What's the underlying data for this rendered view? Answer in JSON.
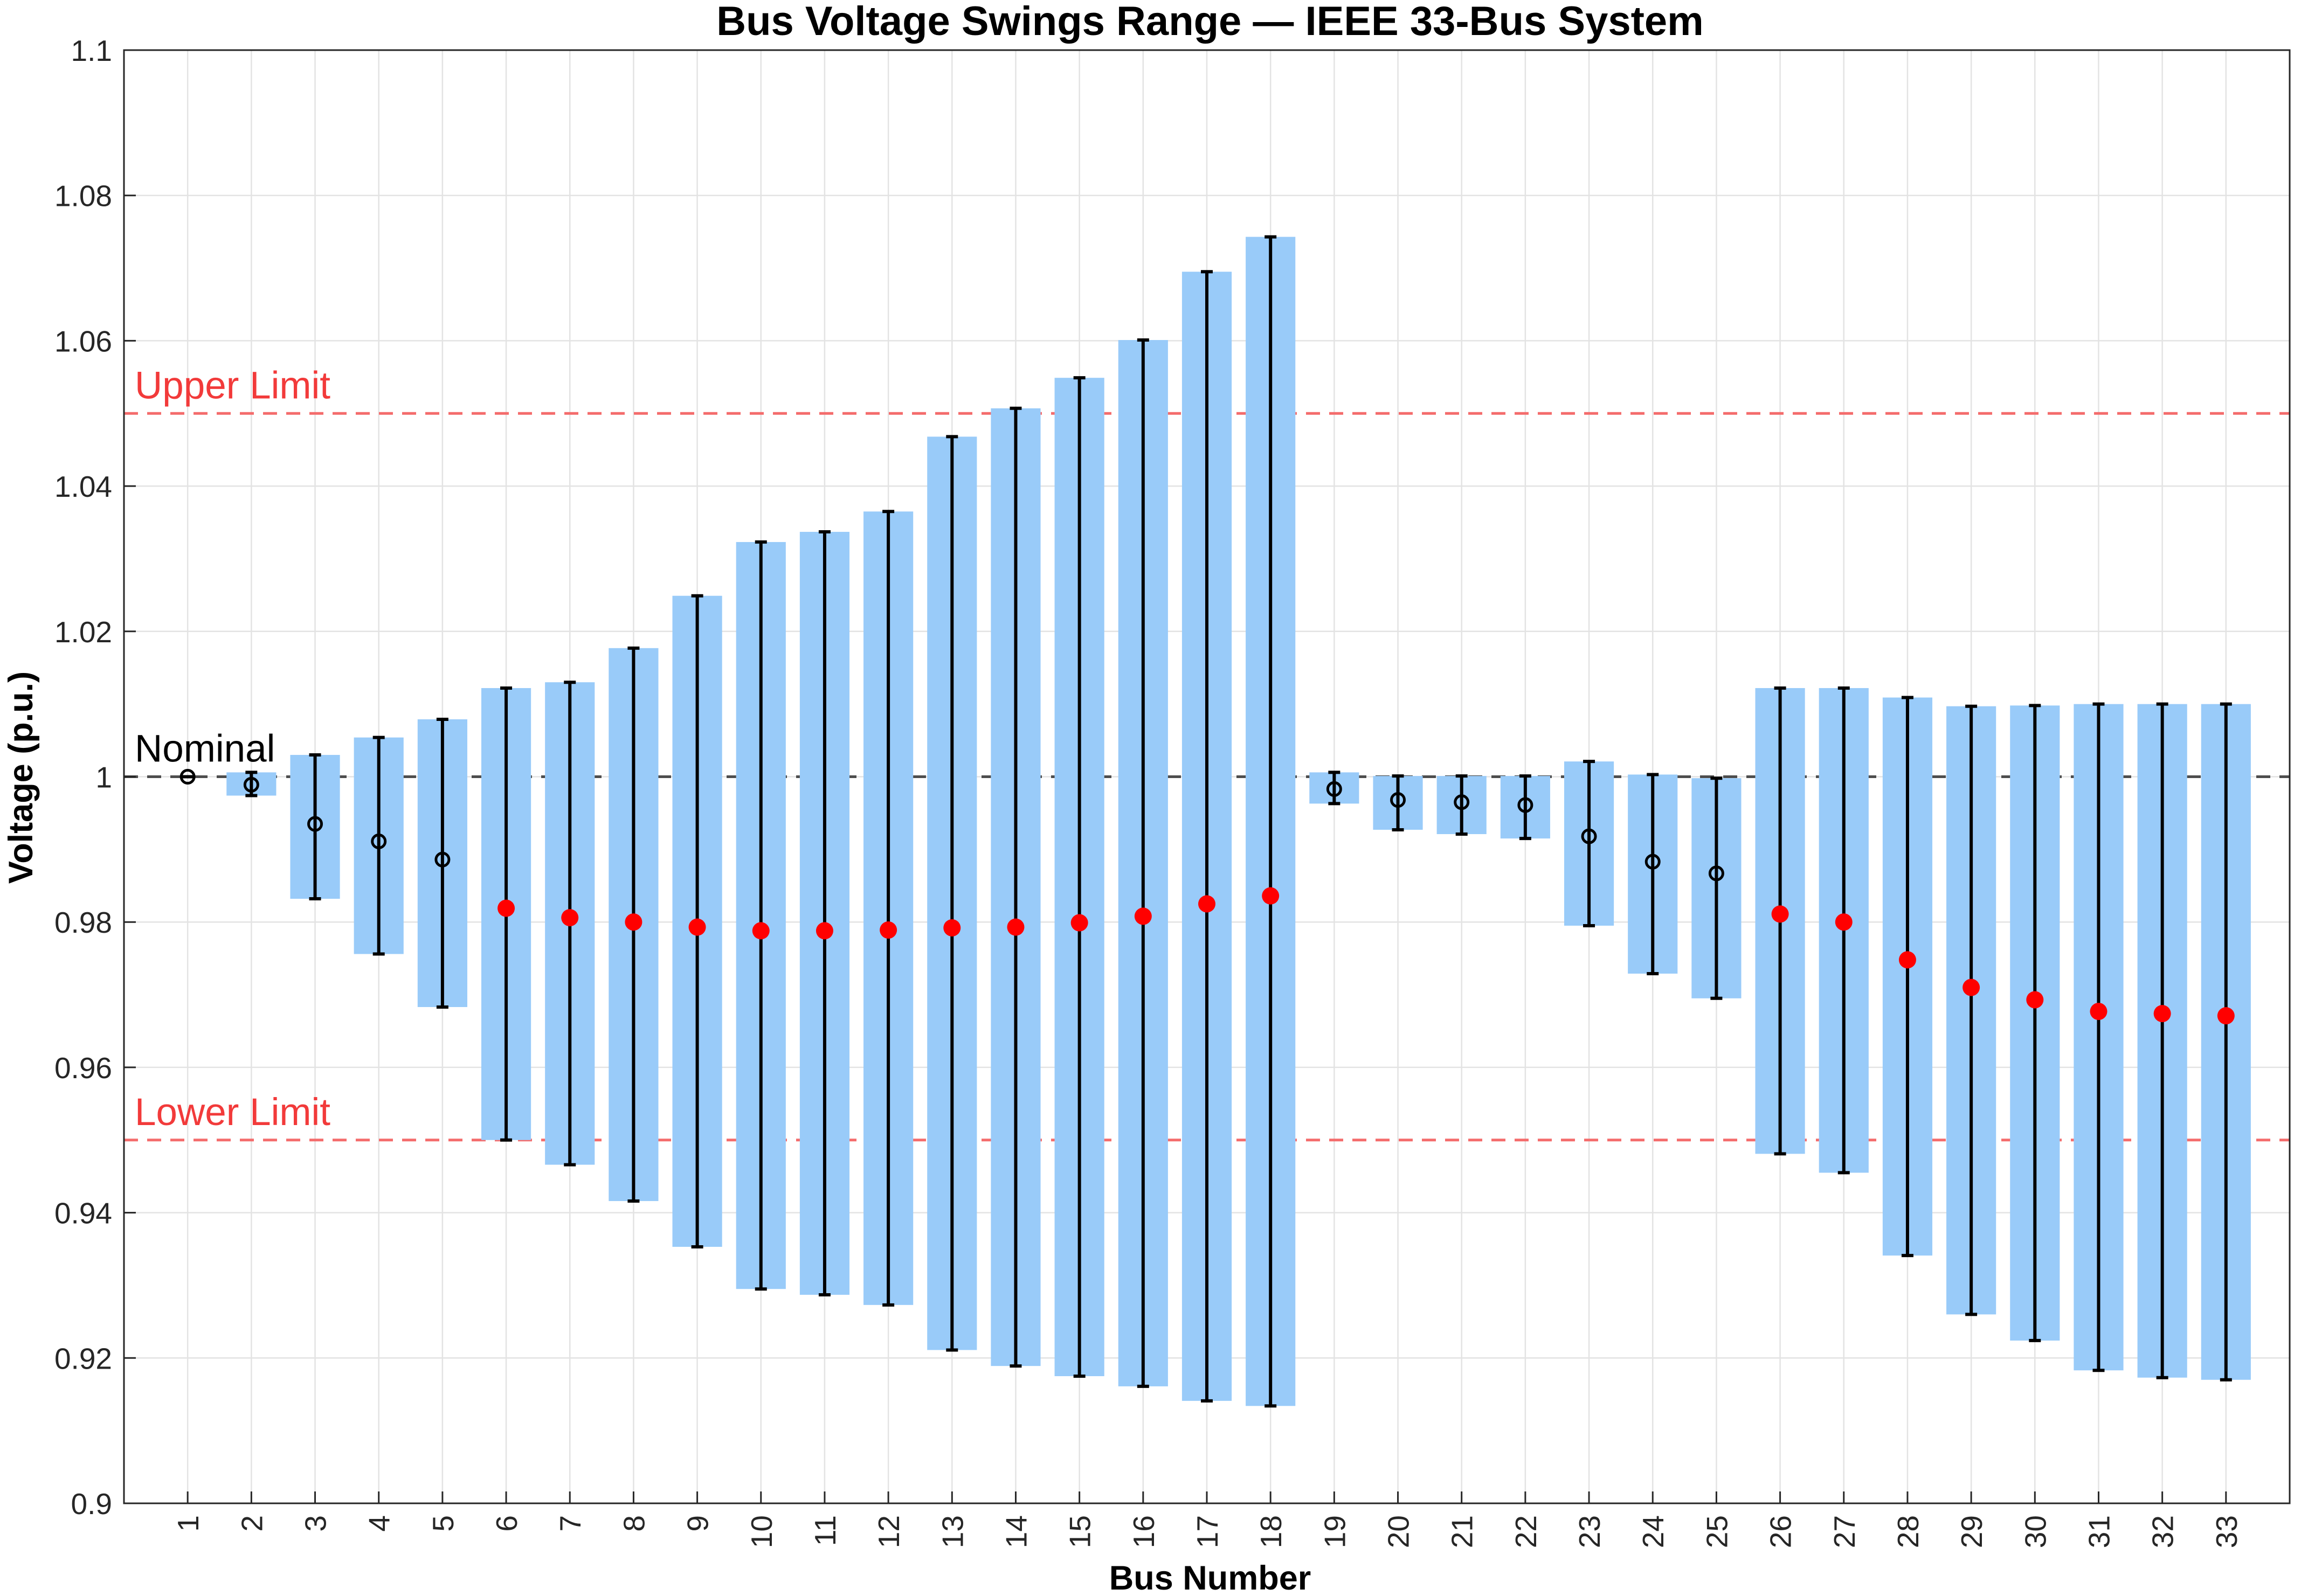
{
  "chart_data": {
    "type": "bar",
    "title": "Bus Voltage Swings Range — IEEE 33-Bus System",
    "xlabel": "Bus Number",
    "ylabel": "Voltage (p.u.)",
    "ylim": [
      0.9,
      1.1
    ],
    "xlim": [
      0,
      34
    ],
    "y_ticks": [
      "0.9",
      "0.92",
      "0.94",
      "0.96",
      "0.98",
      "1",
      "1.02",
      "1.04",
      "1.06",
      "1.08",
      "1.1"
    ],
    "grid": true,
    "categories": [
      "1",
      "2",
      "3",
      "4",
      "5",
      "6",
      "7",
      "8",
      "9",
      "10",
      "11",
      "12",
      "13",
      "14",
      "15",
      "16",
      "17",
      "18",
      "19",
      "20",
      "21",
      "22",
      "23",
      "24",
      "25",
      "26",
      "27",
      "28",
      "29",
      "30",
      "31",
      "32",
      "33"
    ],
    "bus": [
      1,
      2,
      3,
      4,
      5,
      6,
      7,
      8,
      9,
      10,
      11,
      12,
      13,
      14,
      15,
      16,
      17,
      18,
      19,
      20,
      21,
      22,
      23,
      24,
      25,
      26,
      27,
      28,
      29,
      30,
      31,
      32,
      33
    ],
    "vmin": [
      1.0,
      0.9974,
      0.9832,
      0.9756,
      0.9683,
      0.95,
      0.9466,
      0.9416,
      0.9353,
      0.9295,
      0.9287,
      0.9273,
      0.9211,
      0.9189,
      0.9175,
      0.9161,
      0.9141,
      0.9134,
      0.9963,
      0.9927,
      0.9921,
      0.9915,
      0.9795,
      0.9729,
      0.9695,
      0.9481,
      0.9455,
      0.9341,
      0.926,
      0.9224,
      0.9183,
      0.9173,
      0.917
    ],
    "vmax": [
      1.0,
      1.0006,
      1.003,
      1.0054,
      1.0079,
      1.0122,
      1.013,
      1.0177,
      1.0249,
      1.0323,
      1.0337,
      1.0365,
      1.0468,
      1.0507,
      1.0549,
      1.0601,
      1.0695,
      1.0743,
      1.0006,
      1.0001,
      1.0001,
      1.0001,
      1.0021,
      1.0003,
      0.9998,
      1.0122,
      1.0122,
      1.0109,
      1.0097,
      1.0098,
      1.01,
      1.01,
      1.01
    ],
    "vmean": [
      1.0,
      0.9989,
      0.9935,
      0.9911,
      0.9886,
      0.9819,
      0.9806,
      0.98,
      0.9793,
      0.9788,
      0.9788,
      0.9789,
      0.9792,
      0.9793,
      0.9799,
      0.9808,
      0.9825,
      0.9836,
      0.9983,
      0.9968,
      0.9965,
      0.9961,
      0.9918,
      0.9883,
      0.9867,
      0.9811,
      0.98,
      0.9748,
      0.971,
      0.9693,
      0.9677,
      0.9674,
      0.9671
    ],
    "violation": [
      false,
      false,
      false,
      false,
      false,
      true,
      true,
      true,
      true,
      true,
      true,
      true,
      true,
      true,
      true,
      true,
      true,
      true,
      false,
      false,
      false,
      false,
      false,
      false,
      false,
      true,
      true,
      true,
      true,
      true,
      true,
      true,
      true
    ],
    "reference_lines": [
      {
        "label": "Upper Limit",
        "y": 1.05,
        "color": "#f46c6c"
      },
      {
        "label": "Nominal",
        "y": 1.0,
        "color": "#4d4d4d"
      },
      {
        "label": "Lower Limit",
        "y": 0.95,
        "color": "#f46c6c"
      }
    ],
    "colors": {
      "bar": "#99cbf9",
      "errorbar": "#000000",
      "marker_normal": "#000000",
      "marker_violation": "#ff0000",
      "limit_text": "#f23a3a",
      "nominal_text": "#000000"
    }
  }
}
